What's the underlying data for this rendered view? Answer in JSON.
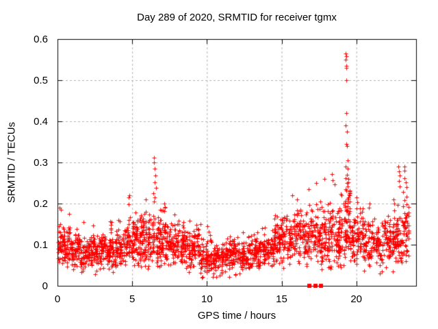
{
  "window": {
    "background": "#ffffff",
    "plot_border_color": "#000000"
  },
  "chart_data": {
    "type": "scatter",
    "title": "Day 289 of 2020, SRMTID for receiver tgmx",
    "xlabel": "GPS time / hours",
    "ylabel": "SRMTID / TECUs",
    "xlim": [
      0,
      24
    ],
    "ylim": [
      0,
      0.6
    ],
    "xticks": {
      "values": [
        0,
        5,
        10,
        15,
        20
      ],
      "labels": [
        "0",
        "5",
        "10",
        "15",
        "20"
      ]
    },
    "yticks": {
      "values": [
        0,
        0.1,
        0.2,
        0.3,
        0.4,
        0.5,
        0.6
      ],
      "labels": [
        "0",
        "0.1",
        "0.2",
        "0.3",
        "0.4",
        "0.5",
        "0.6"
      ]
    },
    "grid": {
      "show": true,
      "color": "#b0b0b0",
      "dash": [
        3,
        3
      ]
    },
    "marker": {
      "glyph": "plus",
      "size": 7,
      "color": "#ff0000"
    },
    "series_name": "SRMTID",
    "legend": {
      "show": false
    },
    "scatter_model": {
      "seed": 2892020,
      "columns_per_hour": 20,
      "segments_format": [
        "x_start",
        "x_end",
        "n_points",
        "y_mean",
        "y_sd",
        "y_min",
        "y_max"
      ],
      "segments": [
        [
          0.0,
          0.5,
          60,
          0.1,
          0.03,
          0.03,
          0.2
        ],
        [
          0.5,
          1.5,
          110,
          0.09,
          0.025,
          0.03,
          0.17
        ],
        [
          1.5,
          2.5,
          110,
          0.082,
          0.024,
          0.02,
          0.16
        ],
        [
          2.5,
          3.5,
          110,
          0.082,
          0.024,
          0.025,
          0.155
        ],
        [
          3.5,
          4.5,
          110,
          0.095,
          0.027,
          0.03,
          0.185
        ],
        [
          4.5,
          5.5,
          115,
          0.108,
          0.032,
          0.035,
          0.215
        ],
        [
          5.5,
          6.5,
          115,
          0.115,
          0.038,
          0.04,
          0.24
        ],
        [
          6.5,
          7.5,
          115,
          0.112,
          0.036,
          0.04,
          0.23
        ],
        [
          7.5,
          8.5,
          110,
          0.102,
          0.03,
          0.035,
          0.19
        ],
        [
          8.5,
          9.5,
          105,
          0.09,
          0.027,
          0.03,
          0.165
        ],
        [
          9.5,
          10.5,
          100,
          0.068,
          0.024,
          0.015,
          0.13
        ],
        [
          10.5,
          11.5,
          100,
          0.068,
          0.02,
          0.02,
          0.12
        ],
        [
          11.5,
          12.5,
          100,
          0.074,
          0.021,
          0.025,
          0.13
        ],
        [
          12.5,
          13.5,
          100,
          0.078,
          0.022,
          0.03,
          0.135
        ],
        [
          13.5,
          14.5,
          100,
          0.085,
          0.024,
          0.03,
          0.15
        ],
        [
          14.5,
          15.5,
          110,
          0.11,
          0.032,
          0.04,
          0.2
        ],
        [
          15.5,
          16.5,
          110,
          0.125,
          0.033,
          0.05,
          0.22
        ],
        [
          16.5,
          17.5,
          110,
          0.12,
          0.038,
          0.04,
          0.245
        ],
        [
          17.5,
          18.5,
          110,
          0.118,
          0.042,
          0.03,
          0.26
        ],
        [
          18.5,
          19.2,
          80,
          0.115,
          0.045,
          0.025,
          0.27
        ],
        [
          19.2,
          19.6,
          55,
          0.15,
          0.055,
          0.05,
          0.33
        ],
        [
          19.6,
          20.5,
          100,
          0.12,
          0.035,
          0.04,
          0.21
        ],
        [
          20.5,
          21.5,
          100,
          0.105,
          0.03,
          0.035,
          0.2
        ],
        [
          21.5,
          22.5,
          100,
          0.1,
          0.032,
          0.03,
          0.2
        ],
        [
          22.5,
          23.1,
          70,
          0.11,
          0.038,
          0.035,
          0.23
        ],
        [
          23.1,
          23.5,
          50,
          0.135,
          0.045,
          0.05,
          0.29
        ]
      ],
      "outliers": [
        [
          0.15,
          0.19
        ],
        [
          0.25,
          0.185
        ],
        [
          0.8,
          0.175
        ],
        [
          4.75,
          0.215
        ],
        [
          4.82,
          0.22
        ],
        [
          5.9,
          0.21
        ],
        [
          6.45,
          0.312
        ],
        [
          6.48,
          0.3
        ],
        [
          6.5,
          0.285
        ],
        [
          6.55,
          0.268
        ],
        [
          6.5,
          0.252
        ],
        [
          6.58,
          0.238
        ],
        [
          6.42,
          0.225
        ],
        [
          6.52,
          0.215
        ],
        [
          6.47,
          0.205
        ],
        [
          7.15,
          0.2
        ],
        [
          7.2,
          0.19
        ],
        [
          9.55,
          0.15
        ],
        [
          10.05,
          0.145
        ],
        [
          10.1,
          0.132
        ],
        [
          12.4,
          0.13
        ],
        [
          15.7,
          0.22
        ],
        [
          16.05,
          0.21
        ],
        [
          16.8,
          0.235
        ],
        [
          17.3,
          0.25
        ],
        [
          17.85,
          0.26
        ],
        [
          18.35,
          0.272
        ],
        [
          18.4,
          0.256
        ],
        [
          18.55,
          0.246
        ],
        [
          19.3,
          0.565
        ],
        [
          19.33,
          0.558
        ],
        [
          19.3,
          0.55
        ],
        [
          19.31,
          0.535
        ],
        [
          19.35,
          0.53
        ],
        [
          19.32,
          0.5
        ],
        [
          19.33,
          0.42
        ],
        [
          19.3,
          0.39
        ],
        [
          19.37,
          0.375
        ],
        [
          19.31,
          0.345
        ],
        [
          19.36,
          0.34
        ],
        [
          19.4,
          0.305
        ],
        [
          19.3,
          0.29
        ],
        [
          19.42,
          0.285
        ],
        [
          19.36,
          0.27
        ],
        [
          19.3,
          0.262
        ],
        [
          19.45,
          0.252
        ],
        [
          19.4,
          0.242
        ],
        [
          19.35,
          0.232
        ],
        [
          19.5,
          0.222
        ],
        [
          19.46,
          0.212
        ],
        [
          19.4,
          0.202
        ],
        [
          20.0,
          0.215
        ],
        [
          20.9,
          0.2
        ],
        [
          20.85,
          0.19
        ],
        [
          22.5,
          0.21
        ],
        [
          22.55,
          0.2
        ],
        [
          22.8,
          0.29
        ],
        [
          22.85,
          0.278
        ],
        [
          22.9,
          0.268
        ],
        [
          22.87,
          0.255
        ],
        [
          22.92,
          0.242
        ],
        [
          23.2,
          0.29
        ],
        [
          23.24,
          0.28
        ],
        [
          23.2,
          0.262
        ],
        [
          23.3,
          0.252
        ],
        [
          23.35,
          0.24
        ]
      ],
      "zero_value_clusters": {
        "x": [
          16.85,
          17.25,
          17.65
        ],
        "y": 0,
        "points_per_cluster": 5
      }
    }
  }
}
